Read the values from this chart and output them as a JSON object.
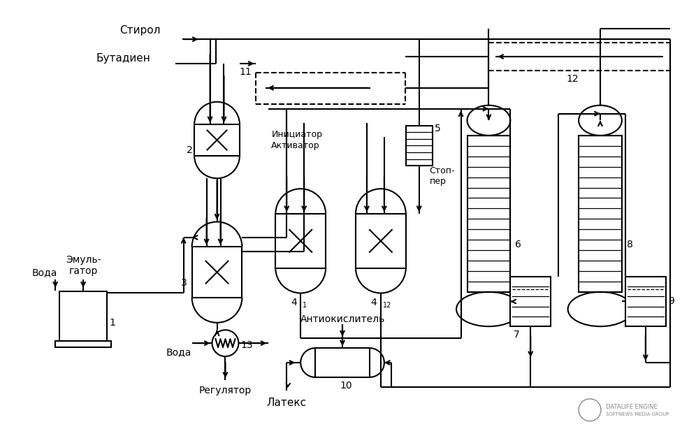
{
  "bg_color": "#ffffff",
  "lc": "#000000",
  "lw": 1.5,
  "figsize": [
    9.96,
    6.14
  ],
  "dpi": 100,
  "labels": {
    "styrol": "Стирол",
    "butadien": "Бутадиен",
    "voda1": "Вода",
    "emulgator": "Эмуль-\nгатор",
    "iniciator": "Инициатор",
    "aktivator": "Активатор",
    "stopper": "Стоп-\nпер",
    "antioxidant": "Антиокислитель",
    "latex": "Латекс",
    "regulator": "Регулятор",
    "voda2": "Вода"
  },
  "nums": {
    "n1": "1",
    "n2": "2",
    "n3": "3",
    "n41": "4",
    "n41s": "1",
    "n42": "4",
    "n42s": "12",
    "n5": "5",
    "n6": "6",
    "n7": "7",
    "n8": "8",
    "n9": "9",
    "n10": "10",
    "n11": "11",
    "n12": "12",
    "n13": "13"
  }
}
